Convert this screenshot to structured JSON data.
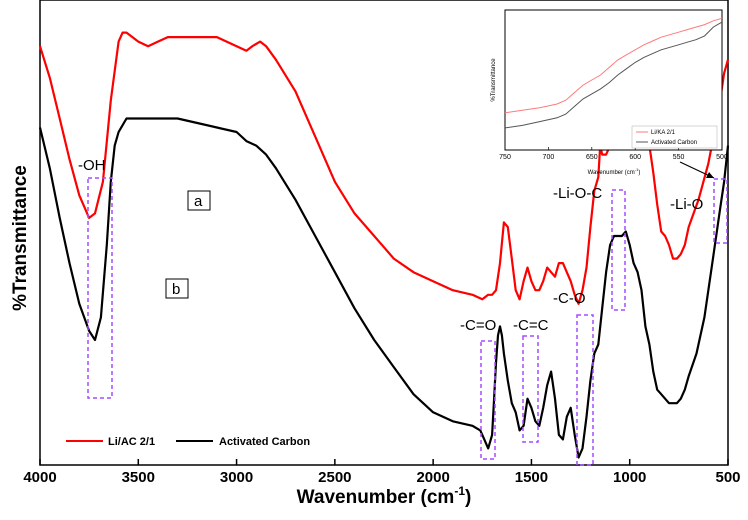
{
  "chart_data": [
    {
      "type": "line",
      "xlabel": "Wavenumber (cm",
      "xlabel_sup": "-1",
      "xlabel_close": ")",
      "ylabel": "%Transmittance",
      "xlim": [
        4000,
        500
      ],
      "x_reversed": true,
      "xticks": [
        4000,
        3500,
        3000,
        2500,
        2000,
        1500,
        1000,
        500
      ],
      "y_tick_labels": false,
      "legend_position": "bottom-left",
      "colors": {
        "red": "#ff0000",
        "black": "#000000",
        "annotation_box": "#a64dff"
      },
      "series": [
        {
          "name": "Li/AC 2/1",
          "color": "#ff0000",
          "x": [
            4000,
            3950,
            3900,
            3850,
            3800,
            3750,
            3720,
            3680,
            3640,
            3600,
            3580,
            3560,
            3500,
            3450,
            3400,
            3350,
            3300,
            3200,
            3100,
            3000,
            2950,
            2920,
            2880,
            2850,
            2800,
            2700,
            2600,
            2500,
            2400,
            2300,
            2200,
            2100,
            2000,
            1900,
            1800,
            1750,
            1720,
            1700,
            1680,
            1660,
            1640,
            1620,
            1600,
            1580,
            1560,
            1540,
            1520,
            1500,
            1480,
            1460,
            1440,
            1420,
            1400,
            1380,
            1360,
            1340,
            1320,
            1300,
            1280,
            1260,
            1240,
            1220,
            1200,
            1180,
            1160,
            1150,
            1140,
            1120,
            1100,
            1080,
            1060,
            1040,
            1020,
            1000,
            980,
            960,
            940,
            920,
            900,
            880,
            860,
            840,
            820,
            800,
            780,
            760,
            740,
            720,
            700,
            650,
            600,
            560,
            540,
            520,
            500
          ],
          "y": [
            92,
            85,
            76,
            67,
            59,
            54,
            55,
            62,
            80,
            93,
            95,
            95,
            93,
            92,
            93,
            94,
            94,
            94,
            94,
            92,
            91,
            92,
            93,
            92,
            89,
            82,
            72,
            62,
            55,
            50,
            45,
            42,
            40,
            38,
            37,
            36,
            37,
            37,
            38,
            44,
            53,
            52,
            45,
            38,
            36,
            40,
            43,
            40,
            38,
            38,
            40,
            43,
            42,
            41,
            44,
            44,
            42,
            40,
            37,
            35,
            38,
            43,
            52,
            60,
            63,
            70,
            68,
            68,
            70,
            75,
            80,
            86,
            90,
            89,
            86,
            82,
            76,
            74,
            70,
            64,
            57,
            51,
            50,
            48,
            45,
            45,
            46,
            48,
            52,
            58,
            66,
            75,
            80,
            86,
            89
          ]
        },
        {
          "name": "Activated Carbon",
          "color": "#000000",
          "x": [
            4000,
            3950,
            3900,
            3850,
            3800,
            3750,
            3720,
            3690,
            3660,
            3640,
            3620,
            3600,
            3560,
            3500,
            3400,
            3300,
            3200,
            3100,
            3000,
            2950,
            2900,
            2850,
            2800,
            2700,
            2600,
            2500,
            2400,
            2300,
            2200,
            2100,
            2000,
            1900,
            1800,
            1760,
            1740,
            1720,
            1700,
            1690,
            1680,
            1670,
            1660,
            1650,
            1640,
            1620,
            1600,
            1580,
            1560,
            1540,
            1520,
            1500,
            1480,
            1460,
            1440,
            1420,
            1400,
            1380,
            1360,
            1340,
            1320,
            1300,
            1280,
            1260,
            1240,
            1220,
            1200,
            1180,
            1160,
            1140,
            1120,
            1100,
            1080,
            1060,
            1040,
            1020,
            1000,
            980,
            960,
            940,
            920,
            900,
            880,
            860,
            840,
            820,
            800,
            780,
            760,
            740,
            720,
            700,
            660,
            620,
            580,
            540,
            520,
            500
          ],
          "y": [
            74,
            65,
            54,
            44,
            35,
            29,
            27,
            32,
            48,
            62,
            70,
            73,
            76,
            76,
            76,
            76,
            75,
            74,
            73,
            71,
            70,
            68,
            65,
            58,
            50,
            42,
            34,
            27,
            21,
            15,
            11,
            9,
            8,
            7,
            5,
            3,
            6,
            14,
            22,
            28,
            30,
            28,
            24,
            18,
            13,
            11,
            7,
            8,
            14,
            12,
            9,
            8,
            12,
            17,
            20,
            14,
            6,
            5,
            10,
            12,
            6,
            1,
            3,
            10,
            18,
            24,
            26,
            34,
            42,
            48,
            50,
            50,
            50,
            51,
            48,
            44,
            42,
            38,
            30,
            26,
            20,
            16,
            15,
            14,
            13,
            13,
            13,
            14,
            16,
            19,
            24,
            32,
            44,
            56,
            62,
            70
          ]
        }
      ],
      "annotations": [
        "-OH",
        "-C=O",
        "-C=C",
        "-C-O",
        "-Li-O-C",
        "-Li-O"
      ],
      "curve_labels": [
        "a",
        "b"
      ]
    },
    {
      "type": "line",
      "title": "%Transmittance",
      "xlabel": "Wavenumber (cm",
      "xlabel_sup": "-1",
      "xlabel_close": ")",
      "ylabel": "%Transmittance",
      "xlim": [
        750,
        500
      ],
      "x_reversed": true,
      "xticks": [
        750,
        700,
        650,
        600,
        550,
        500
      ],
      "legend_position": "bottom-right",
      "series": [
        {
          "name": "Li/KA 2/1",
          "color": "#ff7a7a",
          "x": [
            750,
            730,
            710,
            690,
            680,
            670,
            660,
            650,
            640,
            630,
            620,
            610,
            600,
            590,
            580,
            570,
            560,
            550,
            540,
            530,
            520,
            510,
            500
          ],
          "y": [
            20,
            22,
            24,
            27,
            30,
            36,
            42,
            46,
            50,
            56,
            62,
            66,
            70,
            74,
            77,
            80,
            82,
            84,
            86,
            88,
            90,
            93,
            95
          ],
          "axis": "inset"
        },
        {
          "name": "Activated Carbon",
          "color": "#555555",
          "x": [
            750,
            730,
            710,
            690,
            680,
            670,
            660,
            650,
            640,
            630,
            620,
            610,
            600,
            590,
            580,
            570,
            560,
            550,
            540,
            530,
            520,
            510,
            500
          ],
          "y": [
            8,
            10,
            13,
            16,
            19,
            25,
            31,
            35,
            39,
            44,
            50,
            55,
            60,
            64,
            67,
            70,
            72,
            74,
            76,
            78,
            81,
            88,
            92
          ]
        }
      ]
    }
  ]
}
